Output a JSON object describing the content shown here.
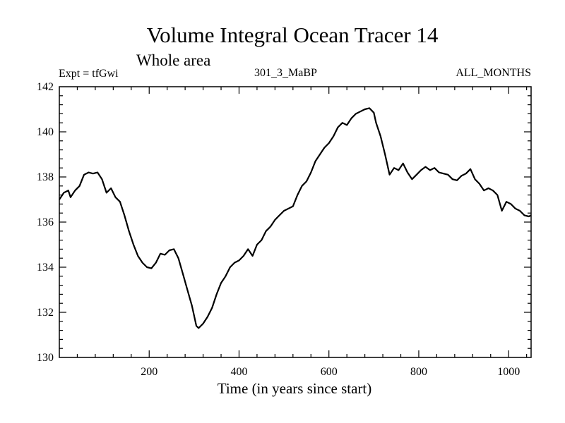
{
  "chart_data": {
    "type": "line",
    "title": "Volume Integral Ocean Tracer 14",
    "subtitle": "Whole area",
    "left_label": "Expt = tfGwi",
    "center_label": "301_3_MaBP",
    "right_label": "ALL_MONTHS",
    "xlabel": "Time (in years since start)",
    "ylabel": "",
    "xlim": [
      0,
      1050
    ],
    "ylim": [
      130,
      142
    ],
    "x_ticks": [
      200,
      400,
      600,
      800,
      1000
    ],
    "y_ticks": [
      130,
      132,
      134,
      136,
      138,
      140,
      142
    ],
    "line_color": "#000000",
    "grid": false,
    "series": [
      {
        "x": [
          0,
          10,
          20,
          25,
          35,
          45,
          55,
          65,
          75,
          85,
          95,
          105,
          115,
          125,
          135,
          145,
          155,
          165,
          175,
          185,
          195,
          205,
          215,
          225,
          235,
          245,
          255,
          265,
          275,
          285,
          295,
          305,
          310,
          320,
          330,
          340,
          350,
          360,
          370,
          380,
          390,
          400,
          410,
          420,
          430,
          440,
          450,
          460,
          470,
          480,
          490,
          500,
          510,
          520,
          530,
          540,
          550,
          560,
          570,
          580,
          590,
          600,
          610,
          620,
          630,
          640,
          650,
          660,
          670,
          680,
          690,
          700,
          705,
          715,
          725,
          735,
          745,
          755,
          765,
          775,
          785,
          795,
          805,
          815,
          825,
          835,
          845,
          855,
          865,
          875,
          885,
          895,
          905,
          915,
          925,
          935,
          945,
          955,
          965,
          975,
          985,
          995,
          1005,
          1015,
          1025,
          1035,
          1045,
          1050
        ],
        "y": [
          137.0,
          137.3,
          137.4,
          137.1,
          137.4,
          137.6,
          138.1,
          138.2,
          138.15,
          138.2,
          137.9,
          137.3,
          137.5,
          137.1,
          136.9,
          136.3,
          135.6,
          135.0,
          134.5,
          134.2,
          134.0,
          133.95,
          134.2,
          134.6,
          134.55,
          134.75,
          134.8,
          134.4,
          133.7,
          133.0,
          132.3,
          131.4,
          131.3,
          131.5,
          131.8,
          132.2,
          132.8,
          133.3,
          133.6,
          134.0,
          134.2,
          134.3,
          134.5,
          134.8,
          134.5,
          135.0,
          135.2,
          135.6,
          135.8,
          136.1,
          136.3,
          136.5,
          136.6,
          136.7,
          137.2,
          137.6,
          137.8,
          138.2,
          138.7,
          139.0,
          139.3,
          139.5,
          139.8,
          140.2,
          140.4,
          140.3,
          140.6,
          140.8,
          140.9,
          141.0,
          141.05,
          140.85,
          140.4,
          139.8,
          139.0,
          138.1,
          138.4,
          138.3,
          138.6,
          138.2,
          137.9,
          138.1,
          138.3,
          138.45,
          138.3,
          138.4,
          138.2,
          138.15,
          138.1,
          137.9,
          137.85,
          138.05,
          138.15,
          138.35,
          137.9,
          137.7,
          137.4,
          137.5,
          137.4,
          137.2,
          136.5,
          136.9,
          136.8,
          136.6,
          136.5,
          136.3,
          136.25,
          136.3
        ]
      }
    ]
  }
}
